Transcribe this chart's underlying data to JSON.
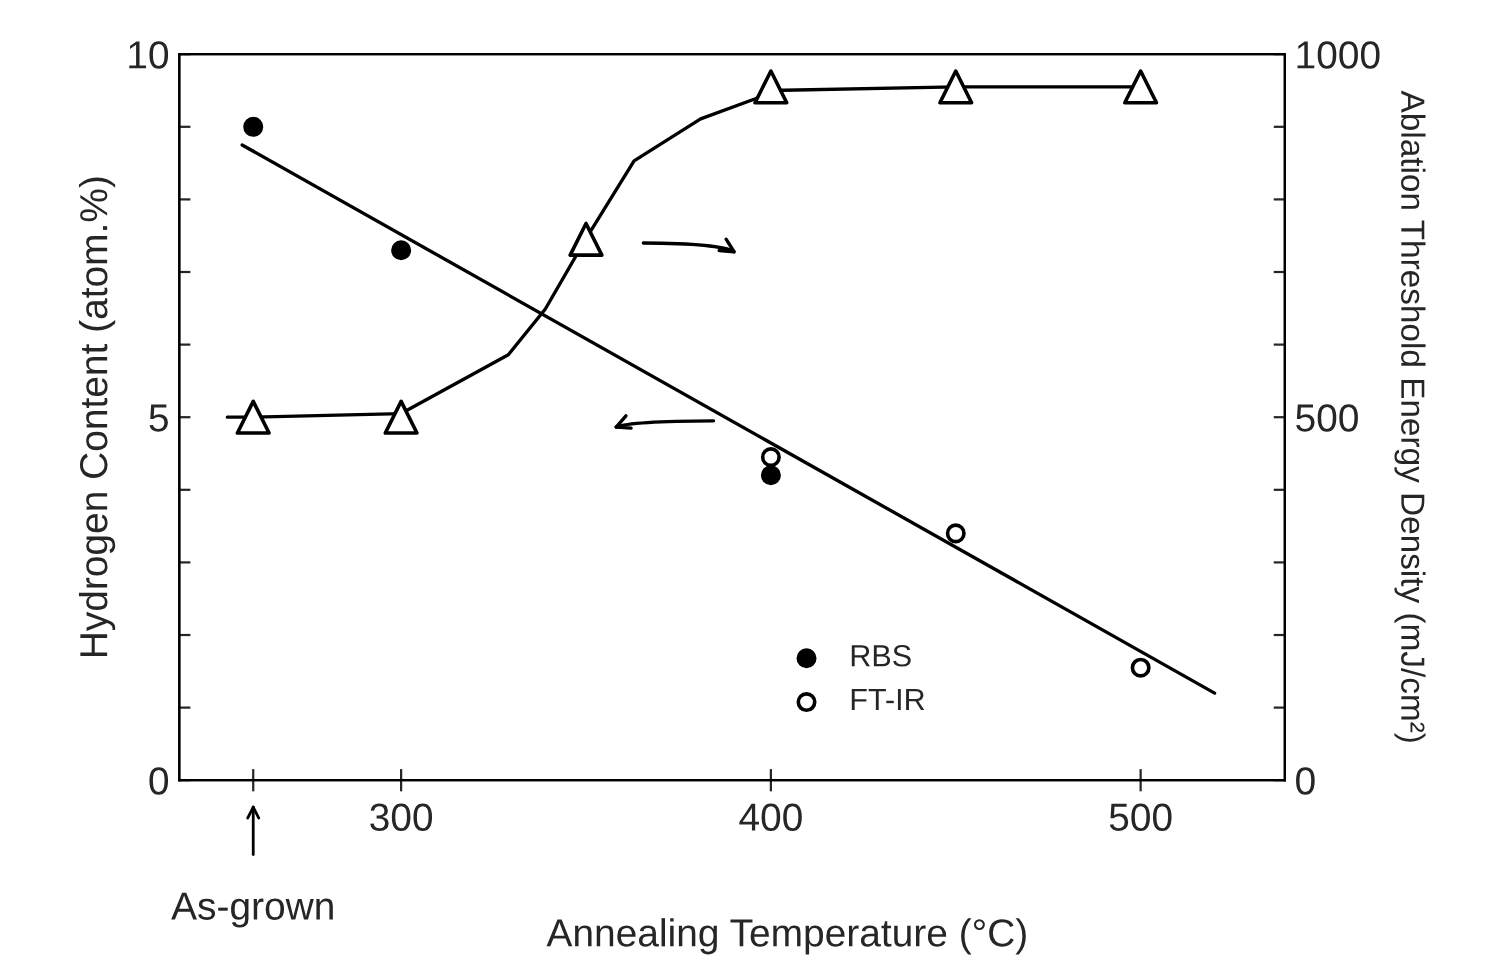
{
  "chart_data": {
    "type": "scatter",
    "xlabel": "Annealing Temperature (°C)",
    "ylabel": "Hydrogen Content (atom.%)",
    "y2label": "Ablation Threshold Energy Density (mJ/cm²)",
    "xlim": [
      240,
      539
    ],
    "xticks": [
      {
        "value": 260,
        "label": null
      },
      300,
      400,
      500
    ],
    "annotations": [
      "As-grown"
    ],
    "ylim": [
      0,
      10
    ],
    "yticks": [
      0,
      {
        "value": 1,
        "label": null
      },
      {
        "value": 2,
        "label": null
      },
      {
        "value": 3,
        "label": null
      },
      {
        "value": 4,
        "label": null
      },
      5,
      {
        "value": 6,
        "label": null
      },
      {
        "value": 7,
        "label": null
      },
      {
        "value": 8,
        "label": null
      },
      {
        "value": 9,
        "label": null
      },
      10
    ],
    "y2lim": [
      0,
      1000
    ],
    "y2ticks": [
      0,
      {
        "value": 100,
        "label": null
      },
      {
        "value": 200,
        "label": null
      },
      {
        "value": 300,
        "label": null
      },
      {
        "value": 400,
        "label": null
      },
      500,
      {
        "value": 600,
        "label": null
      },
      {
        "value": 700,
        "label": null
      },
      {
        "value": 800,
        "label": null
      },
      {
        "value": 900,
        "label": null
      },
      1000
    ],
    "grid": false,
    "legend": "bottom right",
    "series": [
      {
        "name": "RBS",
        "marker": "circle",
        "color": "#000000",
        "x": [
          260,
          300,
          400
        ],
        "values": [
          9.0,
          7.3,
          4.2
        ]
      },
      {
        "name": "FT-IR",
        "marker": "circle",
        "color": "#ffffff",
        "x": [
          400,
          450,
          500
        ],
        "values": [
          4.45,
          3.4,
          1.55
        ]
      },
      {
        "type": "line",
        "marker": "none",
        "color": "#000000",
        "x": [
          257,
          520
        ],
        "values": [
          8.75,
          1.2
        ]
      },
      {
        "marker": "triangle",
        "color": "#ffffff",
        "axis": "y2",
        "x": [
          260,
          300,
          350,
          400,
          450,
          500
        ],
        "values": [
          500,
          500,
          745,
          955,
          955,
          955
        ]
      },
      {
        "type": "line",
        "marker": "none",
        "color": "#000000",
        "axis": "y2",
        "x": [
          253,
          260,
          300,
          329,
          339,
          350,
          363,
          381,
          396,
          400,
          450,
          500
        ],
        "values": [
          500,
          500,
          505,
          586,
          649,
          746,
          853,
          911,
          939,
          950,
          955,
          955
        ]
      }
    ]
  }
}
